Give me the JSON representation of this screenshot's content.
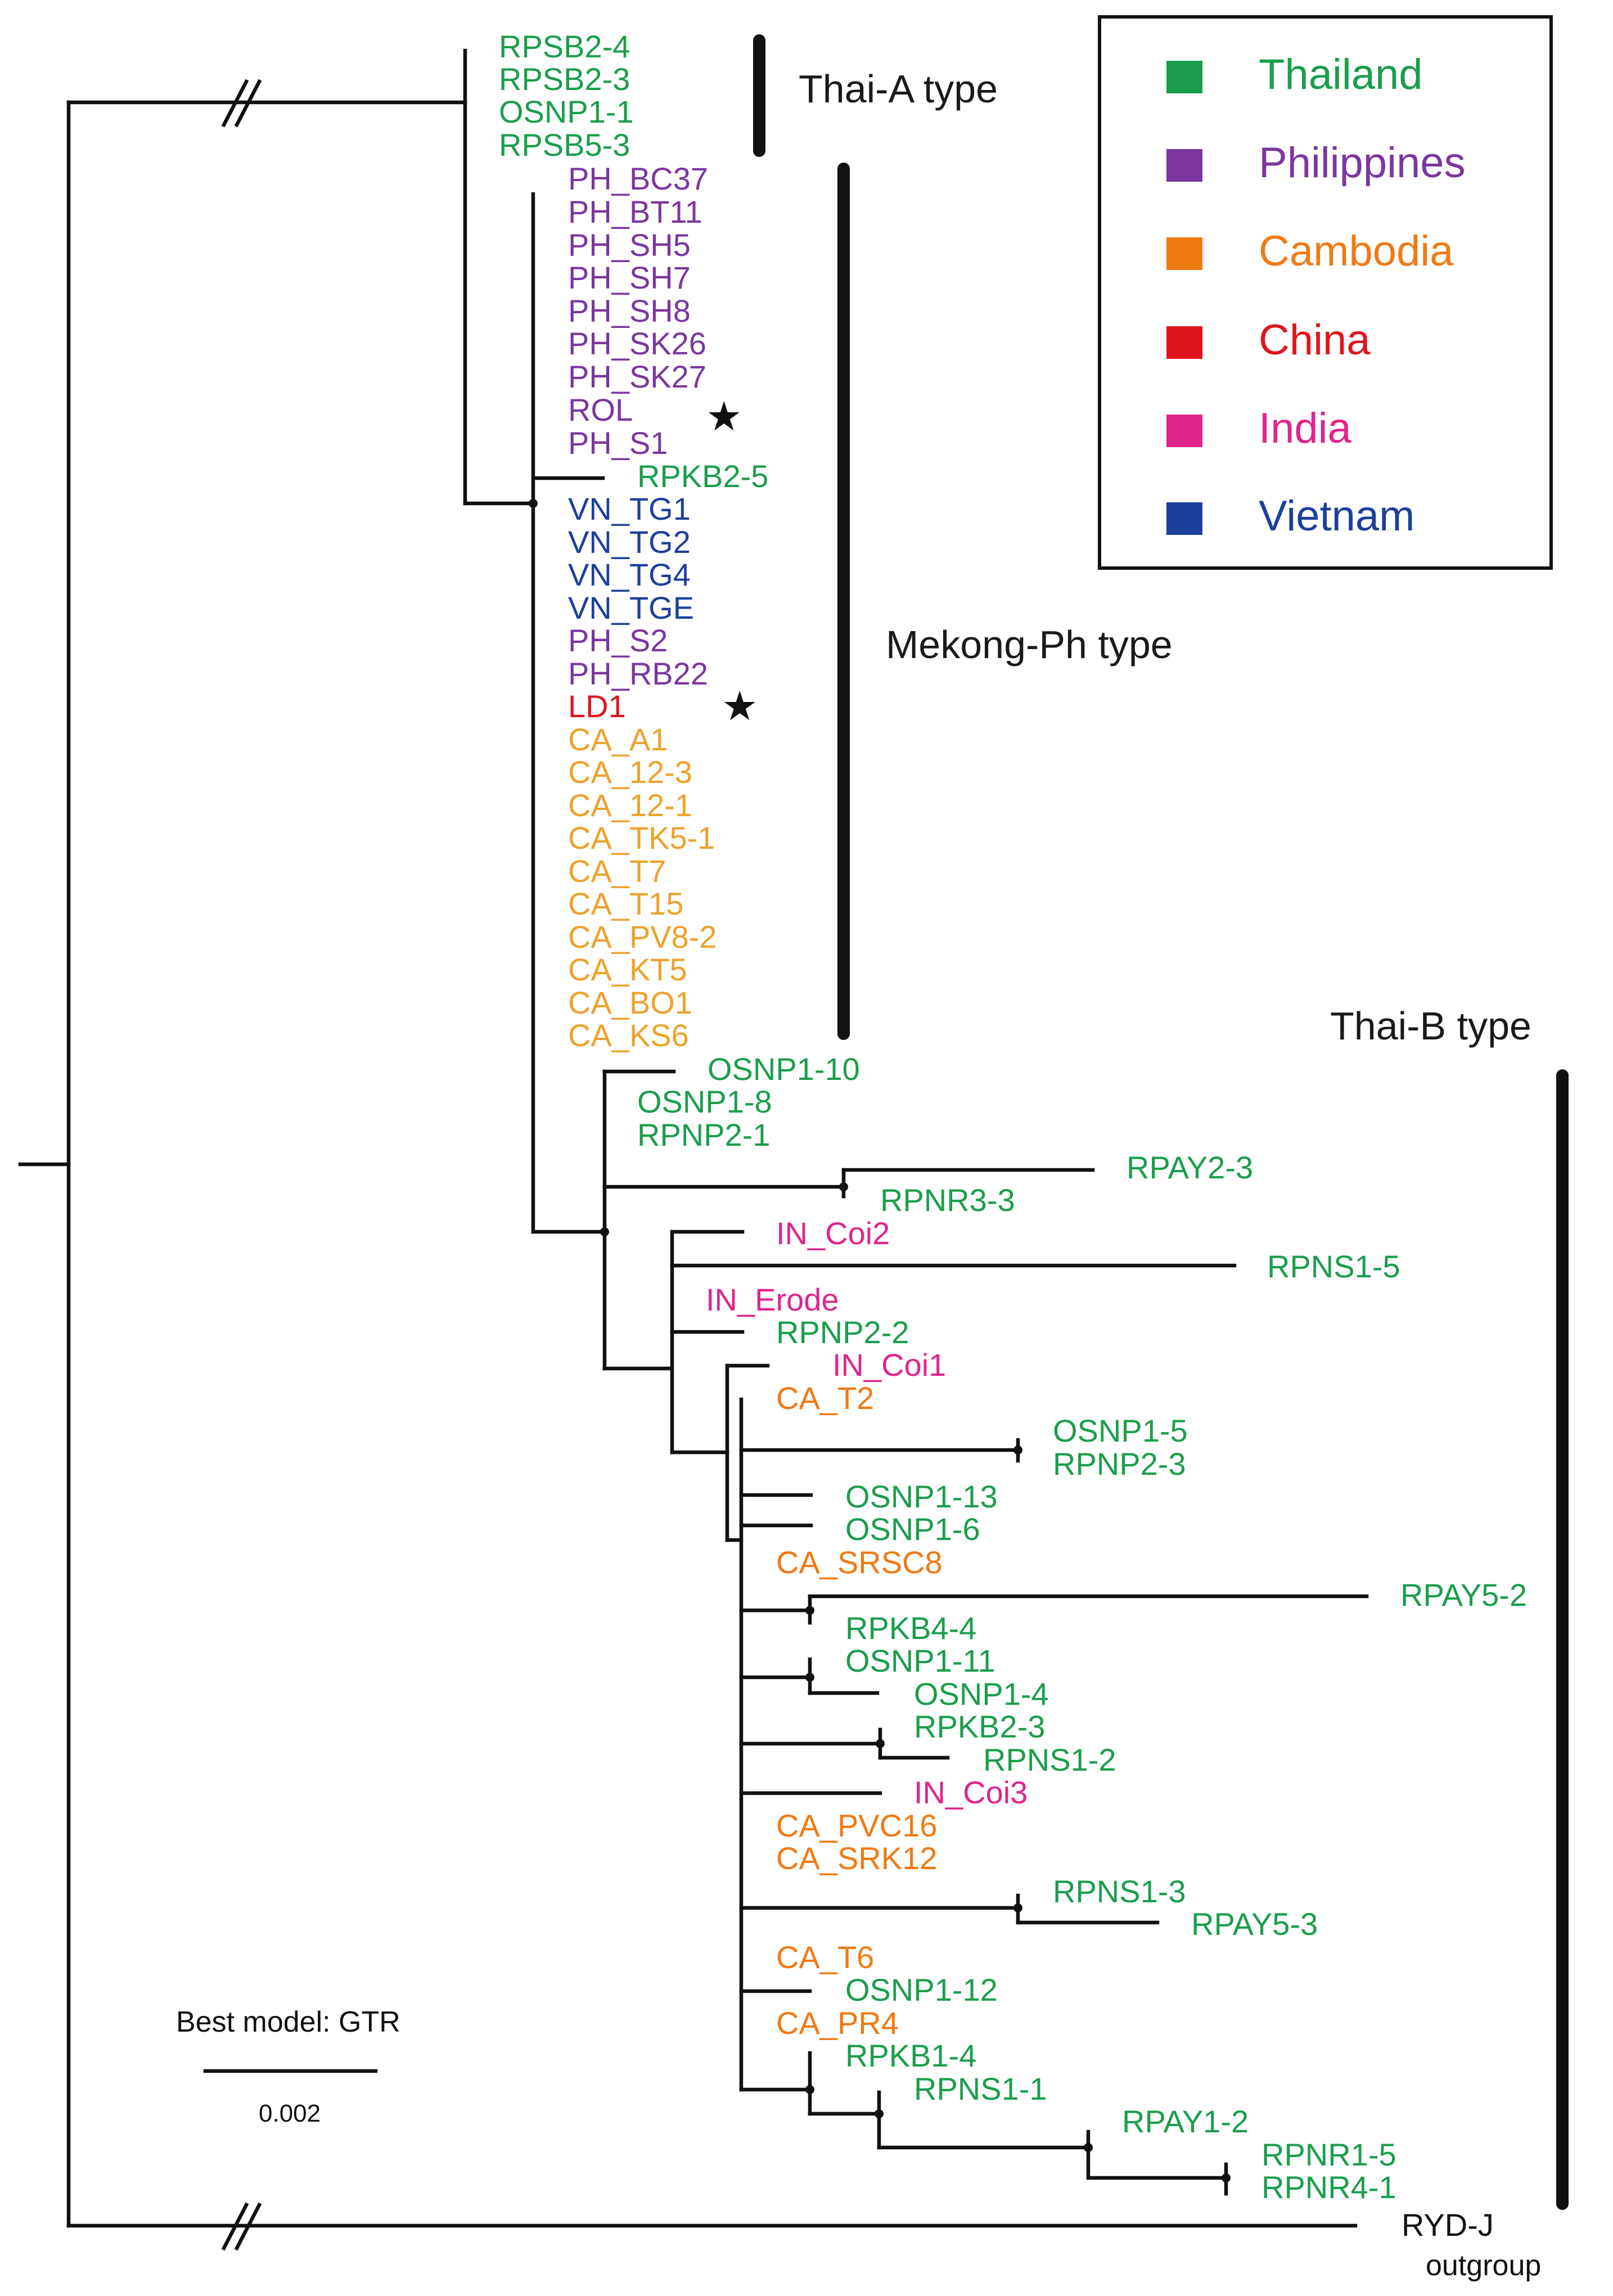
{
  "colors": {
    "Thailand": "#1a9e4b",
    "Philippines": "#7b36a0",
    "Cambodia": "#f07a14",
    "China": "#e0141c",
    "India": "#e0248c",
    "Vietnam": "#1d3f9c",
    "Cambodia_light": "#eda22c",
    "Other": "#111111"
  },
  "legend": [
    {
      "label": "Thailand",
      "color": "#1a9e4b"
    },
    {
      "label": "Philippines",
      "color": "#7b36a0"
    },
    {
      "label": "Cambodia",
      "color": "#f07a14"
    },
    {
      "label": "China",
      "color": "#e0141c"
    },
    {
      "label": "India",
      "color": "#e0248c"
    },
    {
      "label": "Vietnam",
      "color": "#1d3f9c"
    }
  ],
  "clades": {
    "thai_a": "Thai-A type",
    "mekong_ph": "Mekong-Ph type",
    "thai_b": "Thai-B type"
  },
  "scale": {
    "model": "Best model: GTR",
    "value": "0.002"
  },
  "outgroup_label": "outgroup",
  "tips": {
    "RPSB2-4": "Thailand",
    "RPSB2-3": "Thailand",
    "OSNP1-1": "Thailand",
    "RPSB5-3": "Thailand",
    "PH_BC37": "Philippines",
    "PH_BT11": "Philippines",
    "PH_SH5": "Philippines",
    "PH_SH7": "Philippines",
    "PH_SH8": "Philippines",
    "PH_SK26": "Philippines",
    "PH_SK27": "Philippines",
    "ROL": "Philippines",
    "PH_S1": "Philippines",
    "RPKB2-5": "Thailand",
    "VN_TG1": "Vietnam",
    "VN_TG2": "Vietnam",
    "VN_TG4": "Vietnam",
    "VN_TGE": "Vietnam",
    "PH_S2": "Philippines",
    "PH_RB22": "Philippines",
    "LD1": "China",
    "CA_A1": "Cambodia_light",
    "CA_12-3": "Cambodia_light",
    "CA_12-1": "Cambodia_light",
    "CA_TK5-1": "Cambodia_light",
    "CA_T7": "Cambodia_light",
    "CA_T15": "Cambodia_light",
    "CA_PV8-2": "Cambodia_light",
    "CA_KT5": "Cambodia_light",
    "CA_BO1": "Cambodia_light",
    "CA_KS6": "Cambodia_light",
    "OSNP1-10": "Thailand",
    "OSNP1-8": "Thailand",
    "RPNP2-1": "Thailand",
    "RPAY2-3": "Thailand",
    "RPNR3-3": "Thailand",
    "IN_Coi2": "India",
    "RPNS1-5": "Thailand",
    "IN_Erode": "India",
    "RPNP2-2": "Thailand",
    "IN_Coi1": "India",
    "CA_T2": "Cambodia",
    "OSNP1-5": "Thailand",
    "RPNP2-3": "Thailand",
    "OSNP1-13": "Thailand",
    "OSNP1-6": "Thailand",
    "CA_SRSC8": "Cambodia",
    "RPAY5-2": "Thailand",
    "RPKB4-4": "Thailand",
    "OSNP1-11": "Thailand",
    "OSNP1-4": "Thailand",
    "RPKB2-3": "Thailand",
    "RPNS1-2": "Thailand",
    "IN_Coi3": "India",
    "CA_PVC16": "Cambodia",
    "CA_SRK12": "Cambodia",
    "RPNS1-3": "Thailand",
    "RPAY5-3": "Thailand",
    "CA_T6": "Cambodia",
    "OSNP1-12": "Thailand",
    "CA_PR4": "Cambodia",
    "RPKB1-4": "Thailand",
    "RPNS1-1": "Thailand",
    "RPAY1-2": "Thailand",
    "RPNR1-5": "Thailand",
    "RPNR4-1": "Thailand",
    "RYD-J": "Other"
  },
  "stars": [
    "ROL",
    "LD1"
  ]
}
